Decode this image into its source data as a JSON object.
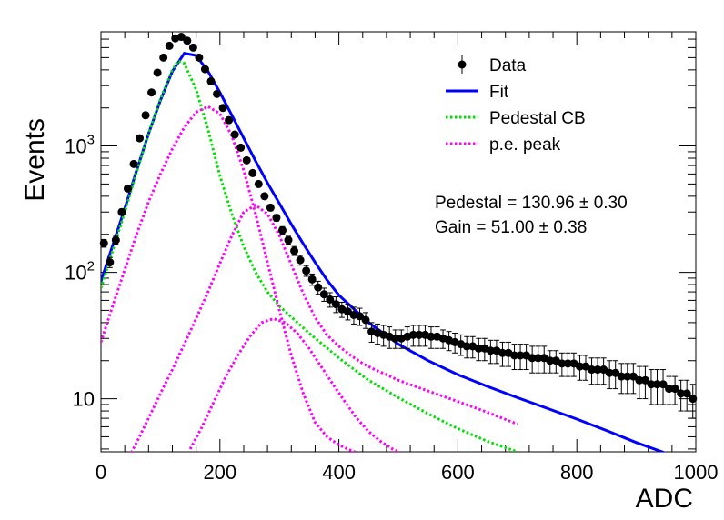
{
  "chart_data": {
    "type": "scatter",
    "xlabel": "ADC",
    "ylabel": "Events",
    "xlim": [
      0,
      1000
    ],
    "ylim": [
      3.8,
      8000
    ],
    "yscale": "log",
    "grid": false,
    "legend_position": "top-right",
    "x_ticks": [
      {
        "value": 0,
        "label": "0"
      },
      {
        "value": 200,
        "label": "200"
      },
      {
        "value": 400,
        "label": "400"
      },
      {
        "value": 600,
        "label": "600"
      },
      {
        "value": 800,
        "label": "800"
      },
      {
        "value": 1000,
        "label": "1000"
      }
    ],
    "y_ticks": [
      {
        "value": 10,
        "base": "10",
        "exp": ""
      },
      {
        "value": 100,
        "base": "10",
        "exp": "2"
      },
      {
        "value": 1000,
        "base": "10",
        "exp": "3"
      }
    ],
    "annotations": [
      {
        "text": "Pedestal = 130.96 ± 0.30"
      },
      {
        "text": "Gain = 51.00 ± 0.38"
      }
    ],
    "series": [
      {
        "name": "Data",
        "style": "markers",
        "color": "#000000",
        "x": [
          5,
          15,
          25,
          35,
          45,
          55,
          65,
          75,
          85,
          95,
          105,
          115,
          125,
          135,
          145,
          155,
          165,
          175,
          185,
          195,
          205,
          215,
          225,
          235,
          245,
          255,
          265,
          275,
          285,
          295,
          305,
          315,
          325,
          335,
          345,
          355,
          365,
          375,
          385,
          395,
          405,
          415,
          425,
          435,
          445,
          455,
          465,
          475,
          485,
          495,
          505,
          515,
          525,
          535,
          545,
          555,
          565,
          575,
          585,
          595,
          605,
          615,
          625,
          635,
          645,
          655,
          665,
          675,
          685,
          695,
          705,
          715,
          725,
          735,
          745,
          755,
          765,
          775,
          785,
          795,
          805,
          815,
          825,
          835,
          845,
          855,
          865,
          875,
          885,
          895,
          905,
          915,
          925,
          935,
          945,
          955,
          965,
          975,
          985,
          995
        ],
        "y": [
          170,
          120,
          180,
          300,
          460,
          720,
          1150,
          1750,
          2650,
          3800,
          5000,
          6200,
          7100,
          7300,
          6800,
          6000,
          5000,
          4050,
          3250,
          2580,
          2000,
          1600,
          1230,
          970,
          770,
          610,
          500,
          400,
          325,
          270,
          215,
          180,
          148,
          125,
          103,
          88,
          76,
          67,
          61,
          56,
          51,
          49,
          46,
          45,
          42,
          34,
          33,
          32,
          31,
          30,
          30,
          31,
          32,
          32,
          32,
          31,
          31,
          30,
          29,
          28,
          27,
          26,
          26,
          25,
          25,
          24,
          24,
          23,
          23,
          22,
          22,
          22,
          21,
          21,
          21,
          20,
          20,
          19,
          19,
          19,
          18,
          18,
          17,
          17,
          17,
          16,
          16,
          15,
          15,
          15,
          14,
          14,
          13,
          13,
          13,
          12,
          12,
          11,
          11,
          10
        ],
        "y_err": [
          12,
          11,
          13,
          17,
          21,
          27,
          34,
          42,
          51,
          62,
          71,
          79,
          84,
          85,
          82,
          77,
          71,
          64,
          57,
          51,
          45,
          40,
          35,
          31,
          28,
          25,
          22,
          20,
          18,
          16,
          15,
          13,
          12,
          11,
          10,
          9,
          9,
          8,
          8,
          8,
          7,
          7,
          7,
          7,
          6,
          6,
          6,
          6,
          6,
          5,
          5,
          6,
          6,
          6,
          6,
          6,
          6,
          5,
          5,
          5,
          5,
          5,
          5,
          5,
          5,
          5,
          5,
          5,
          5,
          5,
          5,
          5,
          5,
          5,
          5,
          4,
          4,
          4,
          4,
          4,
          4,
          4,
          4,
          4,
          4,
          4,
          4,
          4,
          4,
          4,
          4,
          4,
          4,
          4,
          4,
          3,
          3,
          3,
          3,
          3
        ]
      },
      {
        "name": "Fit",
        "style": "solid",
        "color": "#0000ff",
        "x": [
          0,
          20,
          40,
          60,
          80,
          100,
          120,
          140,
          160,
          180,
          200,
          220,
          240,
          260,
          280,
          300,
          320,
          340,
          360,
          380,
          400,
          450,
          500,
          550,
          600,
          650,
          700,
          750,
          800,
          850,
          900,
          950
        ],
        "y": [
          85,
          165,
          320,
          640,
          1250,
          2300,
          3900,
          5400,
          5200,
          3900,
          2650,
          1750,
          1150,
          760,
          510,
          350,
          240,
          168,
          120,
          87,
          66,
          40,
          27,
          20,
          15.5,
          12.5,
          10.2,
          8.4,
          6.9,
          5.6,
          4.5,
          3.7
        ]
      },
      {
        "name": "Pedestal CB",
        "style": "dotted",
        "color": "#00e000",
        "x": [
          0,
          20,
          40,
          60,
          80,
          100,
          120,
          130,
          140,
          160,
          180,
          200,
          220,
          240,
          260,
          280,
          300,
          350,
          400,
          450,
          500,
          550,
          600,
          650,
          700
        ],
        "y": [
          75,
          150,
          300,
          620,
          1250,
          2350,
          4000,
          4700,
          4500,
          2800,
          1350,
          580,
          290,
          160,
          100,
          70,
          54,
          33,
          21,
          14,
          10.2,
          7.6,
          5.8,
          4.6,
          3.8
        ]
      },
      {
        "name": "p.e. peak",
        "style": "dotted",
        "color": "#ff00ff",
        "x": [
          0,
          20,
          40,
          60,
          80,
          100,
          120,
          140,
          160,
          180,
          200,
          220,
          240,
          260,
          280,
          300,
          320,
          340,
          360,
          380,
          400,
          420,
          440,
          460,
          480,
          500,
          550,
          600,
          650
        ],
        "y": [
          28,
          55,
          105,
          200,
          360,
          600,
          950,
          1400,
          1850,
          2050,
          1800,
          1200,
          640,
          290,
          120,
          50,
          22,
          11,
          6.5,
          5,
          4.3,
          3.9,
          3.6,
          3.4,
          3.3,
          3.2,
          3,
          2.8,
          2.6
        ]
      },
      {
        "name": "p.e. peak",
        "style": "dotted",
        "color": "#ff00ff",
        "legend": false,
        "x": [
          40,
          60,
          80,
          100,
          120,
          140,
          160,
          180,
          200,
          220,
          240,
          260,
          280,
          300,
          320,
          340,
          360,
          380,
          400,
          420,
          440,
          460,
          480,
          500,
          550,
          600,
          650,
          700
        ],
        "y": [
          3,
          4.5,
          7,
          11,
          17,
          27,
          43,
          70,
          118,
          195,
          300,
          340,
          290,
          195,
          115,
          68,
          44,
          32,
          26,
          22,
          19,
          17,
          15.5,
          14,
          11.5,
          9.5,
          7.8,
          6.3
        ]
      },
      {
        "name": "p.e. peak",
        "style": "dotted",
        "color": "#ff00ff",
        "legend": false,
        "x": [
          150,
          170,
          190,
          210,
          230,
          250,
          270,
          290,
          310,
          330,
          350,
          370,
          390,
          410,
          430,
          450,
          470,
          490,
          500
        ],
        "y": [
          4,
          6,
          9.5,
          15,
          22,
          31,
          40,
          43,
          40,
          33,
          25,
          18,
          13,
          9.5,
          7,
          5.5,
          4.6,
          4,
          3.8
        ]
      }
    ]
  }
}
